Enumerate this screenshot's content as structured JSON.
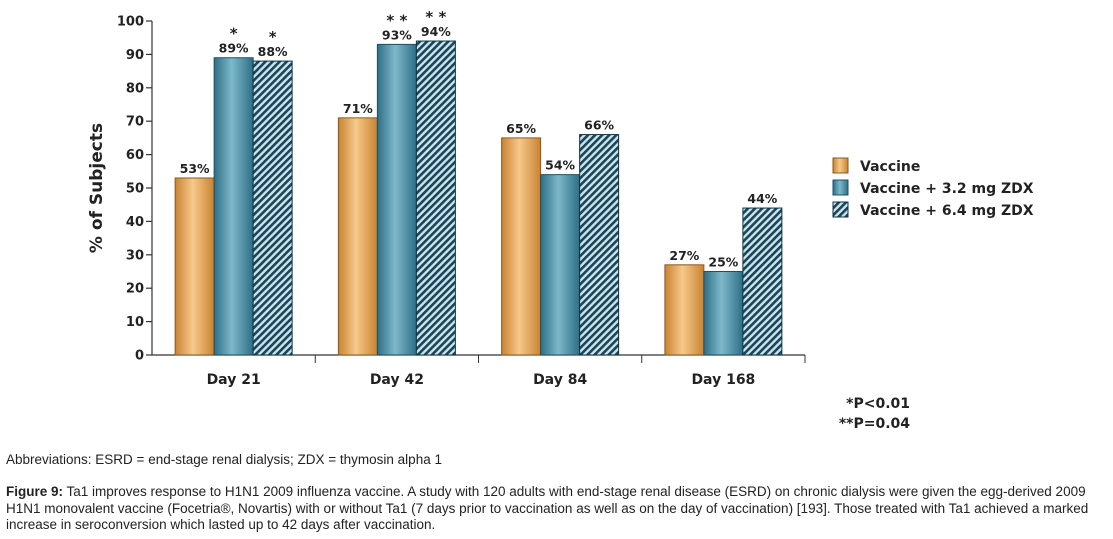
{
  "chart_data": {
    "type": "bar",
    "categories": [
      "Day 21",
      "Day 42",
      "Day 84",
      "Day 168"
    ],
    "series": [
      {
        "name": "Vaccine",
        "values": [
          53,
          71,
          65,
          27
        ],
        "labels": [
          "53%",
          "71%",
          "65%",
          "27%"
        ],
        "stars": [
          "",
          "",
          "",
          ""
        ],
        "color": "#E8A65A",
        "pattern": "solid"
      },
      {
        "name": "Vaccine + 3.2 mg ZDX",
        "values": [
          89,
          93,
          54,
          25
        ],
        "labels": [
          "89%",
          "93%",
          "54%",
          "25%"
        ],
        "stars": [
          "*",
          "**",
          "",
          ""
        ],
        "color": "#4F93AA",
        "pattern": "solid"
      },
      {
        "name": "Vaccine + 6.4 mg ZDX",
        "values": [
          88,
          94,
          66,
          44
        ],
        "labels": [
          "88%",
          "94%",
          "66%",
          "44%"
        ],
        "stars": [
          "*",
          "**",
          "",
          ""
        ],
        "color": "#1E5568",
        "pattern": "diagonal-hatch"
      }
    ],
    "ylabel": "% of Subjects",
    "xlabel": "",
    "ylim": [
      0,
      100
    ],
    "yticks": [
      0,
      10,
      20,
      30,
      40,
      50,
      60,
      70,
      80,
      90,
      100
    ],
    "legend_position": "right",
    "grid": false,
    "significance_notes": [
      "*P<0.01",
      "**P=0.04"
    ]
  },
  "abbreviations": "Abbreviations: ESRD = end-stage renal dialysis; ZDX = thymosin alpha 1",
  "caption": {
    "label": "Figure 9:",
    "text": " Ta1 improves response to H1N1 2009 influenza vaccine. A study with 120 adults with end-stage renal disease (ESRD) on chronic dialysis were given the egg-derived 2009 H1N1 monovalent vaccine (Focetria®, Novartis) with or without Ta1 (7 days prior to vaccination as well as on the day of vaccination) [193]. Those treated with Ta1 achieved a marked increase in seroconversion which lasted up to 42 days after vaccination."
  }
}
